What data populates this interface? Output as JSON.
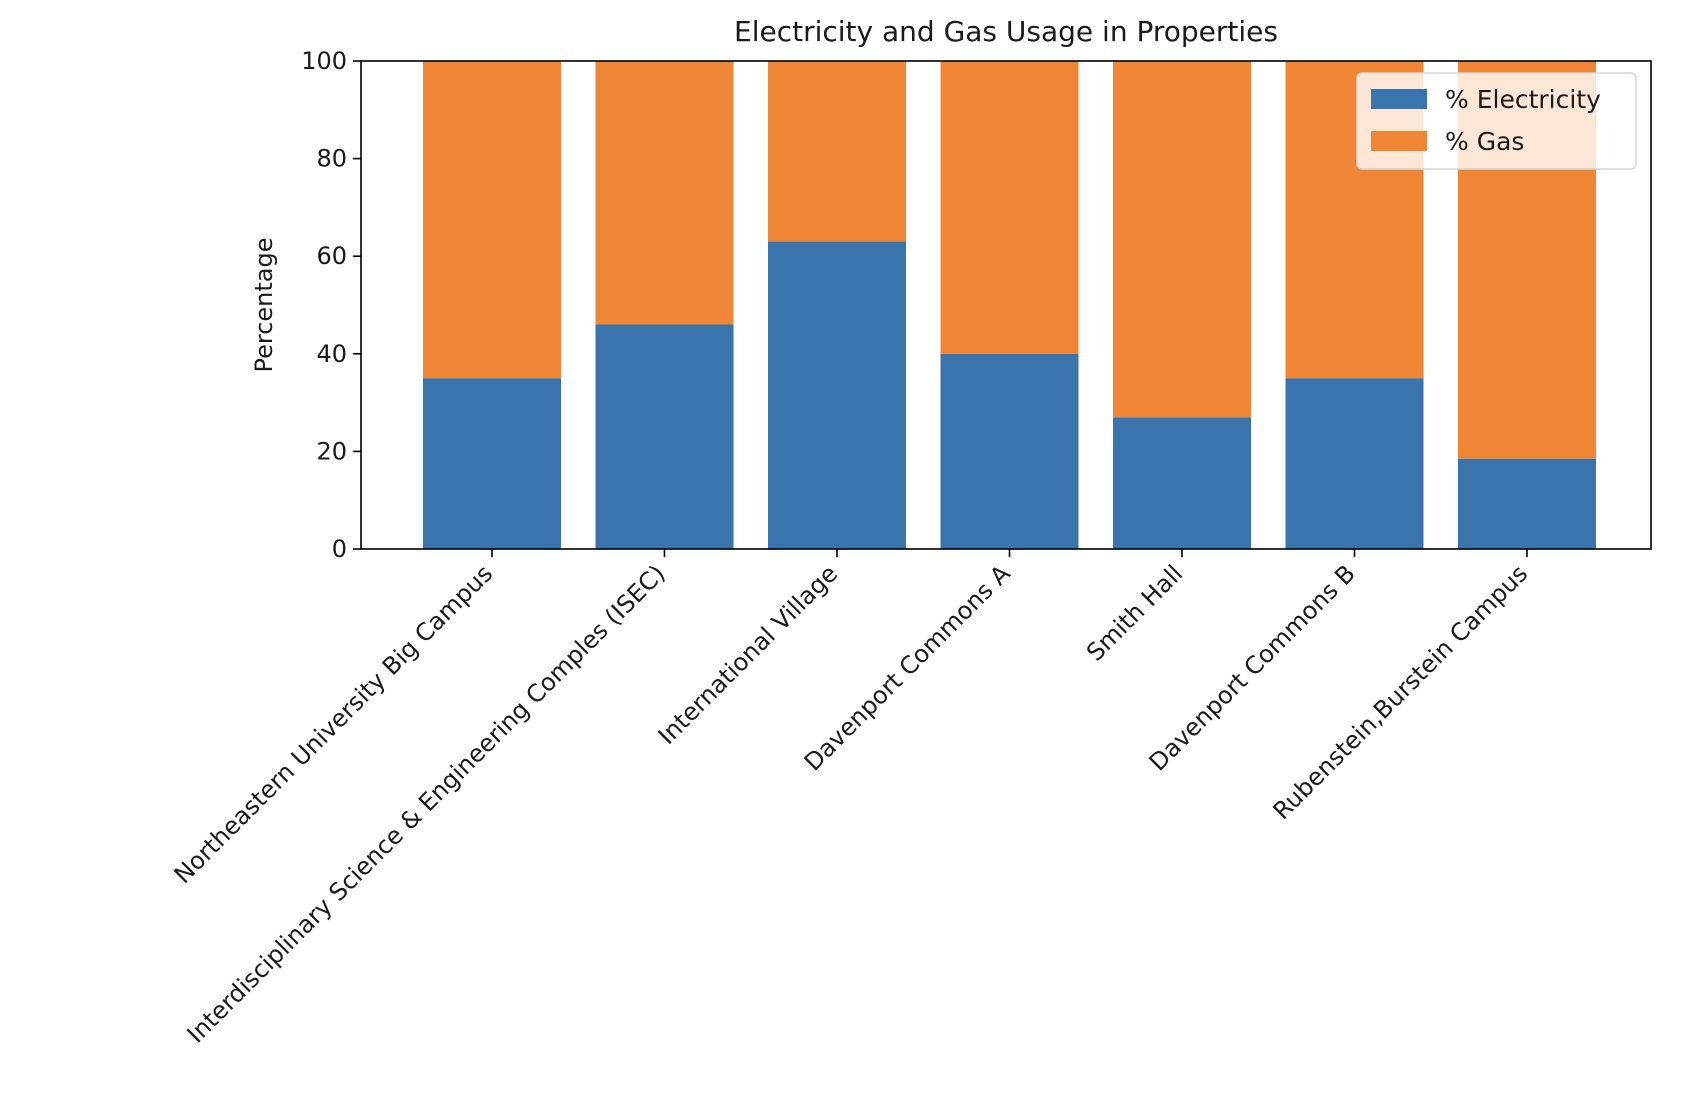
{
  "chart_data": {
    "type": "bar",
    "stacked": true,
    "title": "Electricity and Gas Usage in Properties",
    "xlabel": "",
    "ylabel": "Percentage",
    "ylim": [
      0,
      100
    ],
    "yticks": [
      0,
      20,
      40,
      60,
      80,
      100
    ],
    "grid": false,
    "legend_position": "top-right",
    "categories": [
      "Northeastern University Big Campus",
      "Interdisciplinary Science & Engineering Comples (ISEC)",
      "International Village",
      "Davenport Commons A",
      "Smith Hall",
      "Davenport Commons B",
      "Rubenstein,Burstein Campus"
    ],
    "series": [
      {
        "name": "% Electricity",
        "color": "#3a74ad",
        "values": [
          35,
          46,
          63,
          40,
          27,
          35,
          18.5
        ]
      },
      {
        "name": "% Gas",
        "color": "#ef8636",
        "values": [
          65,
          54,
          37,
          60,
          73,
          65,
          81.5
        ]
      }
    ]
  }
}
